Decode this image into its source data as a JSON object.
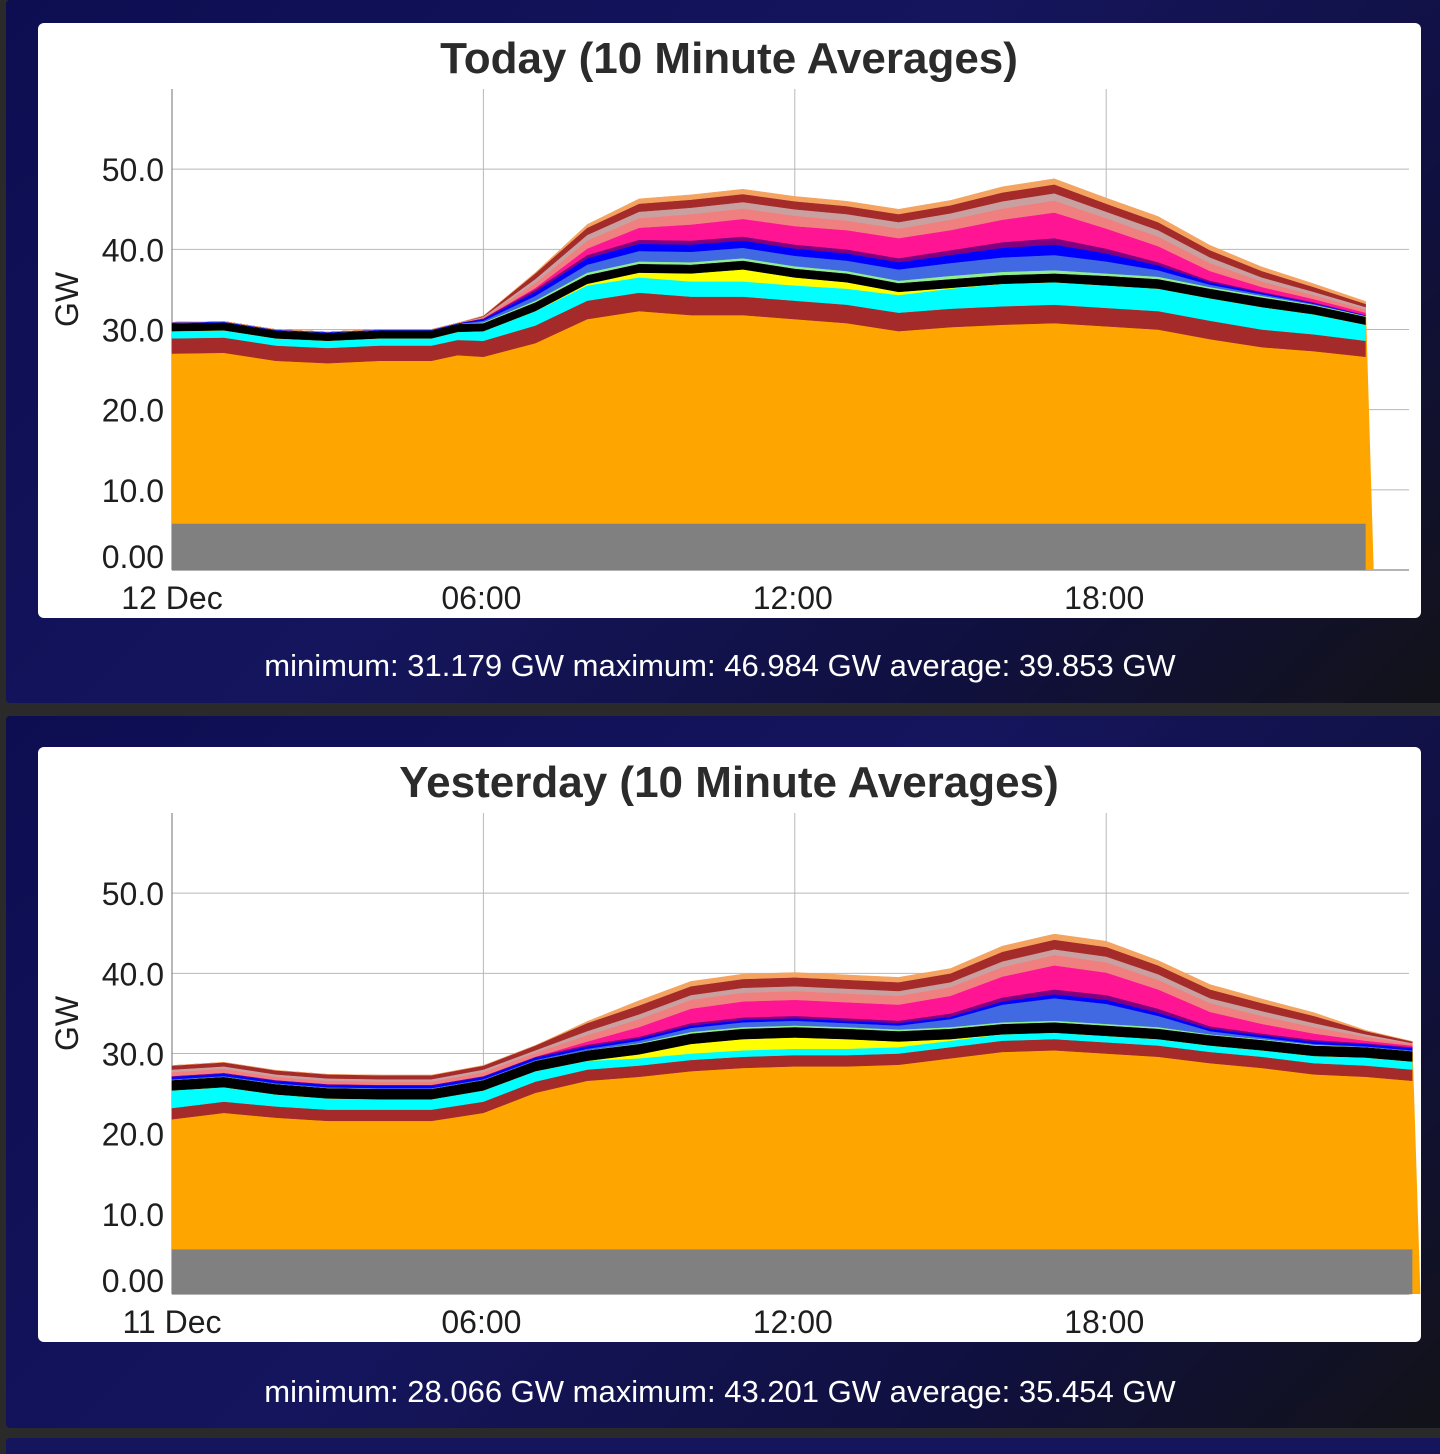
{
  "panels": [
    {
      "stats": "minimum: 31.179 GW maximum: 46.984 GW average: 39.853 GW"
    },
    {
      "stats": "minimum: 28.066 GW maximum: 43.201 GW average: 35.454 GW"
    }
  ],
  "chart_data": [
    {
      "type": "area",
      "title": "Today (10 Minute Averages)",
      "ylabel": "GW",
      "xlabel": "",
      "x_tick_labels": [
        "12 Dec",
        "06:00",
        "12:00",
        "18:00"
      ],
      "x_hours": [
        0,
        1,
        2,
        3,
        4,
        5,
        5.5,
        6,
        7,
        8,
        9,
        10,
        11,
        12,
        13,
        14,
        15,
        16,
        17,
        18,
        19,
        20,
        21,
        22,
        23
      ],
      "ylim": [
        0,
        60
      ],
      "y_ticks": [
        "0.00",
        "10.0",
        "20.0",
        "30.0",
        "40.0",
        "50.0"
      ],
      "grid": true,
      "stacked": true,
      "series": [
        {
          "color": "#808080",
          "values": [
            5.8,
            5.8,
            5.8,
            5.8,
            5.8,
            5.8,
            5.8,
            5.8,
            5.8,
            5.8,
            5.8,
            5.8,
            5.8,
            5.8,
            5.8,
            5.8,
            5.8,
            5.8,
            5.8,
            5.8,
            5.8,
            5.8,
            5.8,
            5.8,
            5.8
          ]
        },
        {
          "color": "#ffa500",
          "values": [
            21.2,
            21.3,
            20.3,
            20.0,
            20.3,
            20.3,
            21.0,
            20.8,
            22.5,
            25.5,
            26.5,
            26.0,
            26.0,
            25.5,
            25.0,
            24.0,
            24.5,
            24.8,
            25.0,
            24.6,
            24.2,
            23.0,
            22.0,
            21.5,
            20.8
          ]
        },
        {
          "color": "#a52a2a",
          "values": [
            1.9,
            1.9,
            1.9,
            1.9,
            1.9,
            1.9,
            1.9,
            2.0,
            2.2,
            2.3,
            2.3,
            2.3,
            2.3,
            2.3,
            2.3,
            2.3,
            2.3,
            2.3,
            2.3,
            2.3,
            2.3,
            2.3,
            2.2,
            2.1,
            2.0
          ]
        },
        {
          "color": "#00ffff",
          "values": [
            0.9,
            0.9,
            0.9,
            0.9,
            0.9,
            0.9,
            1.0,
            1.2,
            1.8,
            1.9,
            1.9,
            1.9,
            1.9,
            1.9,
            2.0,
            2.2,
            2.5,
            2.8,
            2.8,
            2.8,
            2.8,
            2.8,
            2.8,
            2.5,
            2.0
          ]
        },
        {
          "color": "#ffff00",
          "values": [
            0,
            0,
            0,
            0,
            0,
            0,
            0,
            0,
            0,
            0.2,
            0.6,
            1.0,
            1.5,
            1.0,
            0.8,
            0.4,
            0.1,
            0,
            0,
            0,
            0,
            0,
            0,
            0,
            0
          ]
        },
        {
          "color": "#000000",
          "values": [
            1.0,
            1.0,
            1.0,
            1.0,
            1.0,
            1.0,
            1.0,
            1.0,
            1.1,
            1.1,
            1.1,
            1.1,
            1.1,
            1.1,
            1.1,
            1.1,
            1.1,
            1.1,
            1.1,
            1.2,
            1.2,
            1.2,
            1.2,
            1.1,
            1.0
          ]
        },
        {
          "color": "#90ee90",
          "values": [
            0,
            0,
            0,
            0,
            0,
            0,
            0,
            0.1,
            0.2,
            0.3,
            0.3,
            0.3,
            0.3,
            0.3,
            0.3,
            0.3,
            0.4,
            0.4,
            0.4,
            0.3,
            0.3,
            0.2,
            0.2,
            0.1,
            0.1
          ]
        },
        {
          "color": "#4169e1",
          "values": [
            0,
            0,
            0,
            0,
            0,
            0,
            0,
            0.2,
            0.6,
            1.0,
            1.3,
            1.3,
            1.3,
            1.3,
            1.3,
            1.4,
            1.6,
            1.8,
            1.9,
            1.5,
            0.8,
            0.3,
            0.2,
            0.1,
            0
          ]
        },
        {
          "color": "#0000ff",
          "values": [
            0.1,
            0.1,
            0.1,
            0.1,
            0.1,
            0.1,
            0.1,
            0.2,
            0.5,
            0.8,
            0.9,
            0.9,
            0.9,
            0.9,
            0.9,
            0.9,
            1.0,
            1.2,
            1.3,
            1.0,
            0.6,
            0.3,
            0.2,
            0.1,
            0.1
          ]
        },
        {
          "color": "#800080",
          "values": [
            0,
            0,
            0,
            0,
            0,
            0,
            0,
            0.1,
            0.3,
            0.4,
            0.5,
            0.5,
            0.5,
            0.5,
            0.5,
            0.5,
            0.6,
            0.7,
            0.8,
            0.6,
            0.4,
            0.2,
            0.1,
            0.1,
            0
          ]
        },
        {
          "color": "#ff1493",
          "values": [
            0,
            0,
            0,
            0,
            0,
            0,
            0,
            0,
            0.2,
            0.8,
            1.5,
            2.0,
            2.2,
            2.3,
            2.4,
            2.5,
            2.5,
            2.8,
            3.2,
            2.5,
            2.0,
            1.2,
            0.6,
            0.4,
            0.3
          ]
        },
        {
          "color": "#f08080",
          "values": [
            0,
            0,
            0,
            0,
            0,
            0,
            0,
            0.1,
            0.6,
            1.0,
            1.2,
            1.3,
            1.3,
            1.3,
            1.2,
            1.2,
            1.3,
            1.4,
            1.5,
            1.3,
            1.2,
            1.0,
            0.7,
            0.5,
            0.4
          ]
        },
        {
          "color": "#c9a0a0",
          "values": [
            0,
            0,
            0,
            0,
            0,
            0,
            0,
            0.1,
            0.5,
            0.7,
            0.8,
            0.8,
            0.8,
            0.8,
            0.8,
            0.8,
            0.8,
            0.9,
            0.9,
            0.8,
            0.8,
            0.7,
            0.5,
            0.4,
            0.3
          ]
        },
        {
          "color": "#a52a2a",
          "values": [
            0,
            0,
            0,
            0,
            0,
            0,
            0,
            0.1,
            0.7,
            0.9,
            1.0,
            1.0,
            1.0,
            1.0,
            1.0,
            1.0,
            1.0,
            1.1,
            1.1,
            1.0,
            1.0,
            0.9,
            0.8,
            0.6,
            0.4
          ]
        },
        {
          "color": "#f4a460",
          "values": [
            0,
            0,
            0,
            0,
            0,
            0,
            0,
            0,
            0.1,
            0.4,
            0.6,
            0.6,
            0.6,
            0.6,
            0.6,
            0.6,
            0.6,
            0.7,
            0.7,
            0.7,
            0.7,
            0.6,
            0.5,
            0.4,
            0.3
          ]
        }
      ]
    },
    {
      "type": "area",
      "title": "Yesterday (10 Minute Averages)",
      "ylabel": "GW",
      "xlabel": "",
      "x_tick_labels": [
        "11 Dec",
        "06:00",
        "12:00",
        "18:00"
      ],
      "x_hours": [
        0,
        1,
        2,
        3,
        4,
        5,
        6,
        7,
        8,
        9,
        10,
        11,
        12,
        13,
        14,
        15,
        16,
        17,
        18,
        19,
        20,
        21,
        22,
        23,
        23.9
      ],
      "ylim": [
        0,
        60
      ],
      "y_ticks": [
        "0.00",
        "10.0",
        "20.0",
        "30.0",
        "40.0",
        "50.0"
      ],
      "grid": true,
      "stacked": true,
      "series": [
        {
          "color": "#808080",
          "values": [
            5.6,
            5.6,
            5.6,
            5.6,
            5.6,
            5.6,
            5.6,
            5.6,
            5.6,
            5.6,
            5.6,
            5.6,
            5.6,
            5.6,
            5.6,
            5.6,
            5.6,
            5.6,
            5.6,
            5.6,
            5.6,
            5.6,
            5.6,
            5.6,
            5.6
          ]
        },
        {
          "color": "#ffa500",
          "values": [
            16.2,
            17.0,
            16.4,
            16.0,
            16.0,
            16.0,
            17.0,
            19.5,
            21.0,
            21.5,
            22.2,
            22.6,
            22.8,
            22.8,
            23.0,
            23.8,
            24.6,
            24.8,
            24.4,
            24.0,
            23.2,
            22.6,
            21.8,
            21.5,
            21.0
          ]
        },
        {
          "color": "#a52a2a",
          "values": [
            1.4,
            1.4,
            1.4,
            1.4,
            1.4,
            1.4,
            1.4,
            1.4,
            1.4,
            1.4,
            1.4,
            1.4,
            1.4,
            1.4,
            1.4,
            1.4,
            1.4,
            1.4,
            1.4,
            1.4,
            1.4,
            1.4,
            1.4,
            1.4,
            1.4
          ]
        },
        {
          "color": "#00ffff",
          "values": [
            2.2,
            1.8,
            1.5,
            1.4,
            1.3,
            1.3,
            1.4,
            1.3,
            1.1,
            0.9,
            0.8,
            0.8,
            0.8,
            0.8,
            0.8,
            0.8,
            0.8,
            0.8,
            0.8,
            0.8,
            0.8,
            0.8,
            0.9,
            1.0,
            1.0
          ]
        },
        {
          "color": "#ffff00",
          "values": [
            0,
            0,
            0,
            0,
            0,
            0,
            0,
            0,
            0,
            0.5,
            1.2,
            1.4,
            1.4,
            1.2,
            0.7,
            0.2,
            0,
            0,
            0,
            0,
            0,
            0,
            0,
            0,
            0
          ]
        },
        {
          "color": "#000000",
          "values": [
            1.3,
            1.3,
            1.3,
            1.3,
            1.3,
            1.3,
            1.3,
            1.3,
            1.3,
            1.3,
            1.3,
            1.3,
            1.3,
            1.3,
            1.3,
            1.3,
            1.3,
            1.3,
            1.3,
            1.3,
            1.3,
            1.3,
            1.3,
            1.3,
            1.3
          ]
        },
        {
          "color": "#90ee90",
          "values": [
            0,
            0,
            0,
            0,
            0,
            0,
            0,
            0,
            0,
            0.1,
            0.2,
            0.2,
            0.2,
            0.2,
            0.2,
            0.2,
            0.2,
            0.2,
            0.2,
            0.2,
            0.1,
            0.1,
            0.1,
            0,
            0
          ]
        },
        {
          "color": "#4169e1",
          "values": [
            0.1,
            0.1,
            0.1,
            0.1,
            0.1,
            0.1,
            0.1,
            0.1,
            0.2,
            0.3,
            0.5,
            0.6,
            0.6,
            0.5,
            0.5,
            1.0,
            2.2,
            2.8,
            2.5,
            1.4,
            0.4,
            0.2,
            0.1,
            0.1,
            0.1
          ]
        },
        {
          "color": "#0000ff",
          "values": [
            0.3,
            0.3,
            0.3,
            0.3,
            0.3,
            0.3,
            0.3,
            0.3,
            0.3,
            0.3,
            0.3,
            0.3,
            0.3,
            0.3,
            0.3,
            0.3,
            0.4,
            0.5,
            0.5,
            0.4,
            0.3,
            0.3,
            0.3,
            0.3,
            0.3
          ]
        },
        {
          "color": "#800080",
          "values": [
            0.1,
            0.1,
            0.1,
            0.1,
            0.1,
            0.1,
            0.1,
            0.1,
            0.2,
            0.2,
            0.3,
            0.3,
            0.3,
            0.3,
            0.3,
            0.4,
            0.5,
            0.6,
            0.6,
            0.5,
            0.3,
            0.2,
            0.2,
            0.1,
            0.1
          ]
        },
        {
          "color": "#ff1493",
          "values": [
            0,
            0,
            0,
            0,
            0,
            0,
            0,
            0,
            0.4,
            1.2,
            1.8,
            2.0,
            2.0,
            2.0,
            2.0,
            2.2,
            2.6,
            3.0,
            2.8,
            2.4,
            1.8,
            1.2,
            0.8,
            0.3,
            0.2
          ]
        },
        {
          "color": "#f08080",
          "values": [
            0.5,
            0.5,
            0.4,
            0.4,
            0.4,
            0.4,
            0.5,
            0.5,
            0.8,
            1.0,
            1.1,
            1.1,
            1.1,
            1.1,
            1.1,
            1.1,
            1.2,
            1.3,
            1.3,
            1.2,
            1.1,
            1.0,
            0.8,
            0.5,
            0.2
          ]
        },
        {
          "color": "#c9a0a0",
          "values": [
            0.3,
            0.3,
            0.3,
            0.3,
            0.3,
            0.3,
            0.3,
            0.3,
            0.5,
            0.6,
            0.6,
            0.6,
            0.6,
            0.6,
            0.6,
            0.6,
            0.7,
            0.7,
            0.7,
            0.7,
            0.6,
            0.6,
            0.5,
            0.3,
            0.1
          ]
        },
        {
          "color": "#a52a2a",
          "values": [
            0.5,
            0.5,
            0.5,
            0.5,
            0.5,
            0.5,
            0.5,
            0.6,
            1.0,
            1.1,
            1.1,
            1.1,
            1.1,
            1.1,
            1.1,
            1.1,
            1.2,
            1.2,
            1.2,
            1.1,
            1.1,
            1.0,
            0.9,
            0.4,
            0.2
          ]
        },
        {
          "color": "#f4a460",
          "values": [
            0,
            0,
            0,
            0,
            0,
            0,
            0,
            0,
            0.2,
            0.6,
            0.6,
            0.6,
            0.6,
            0.6,
            0.6,
            0.6,
            0.7,
            0.7,
            0.7,
            0.6,
            0.6,
            0.5,
            0.4,
            0.1,
            0
          ]
        }
      ]
    }
  ]
}
